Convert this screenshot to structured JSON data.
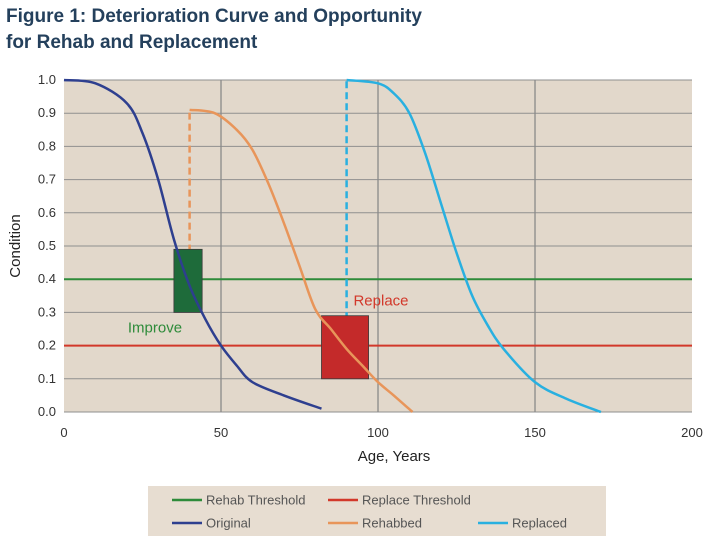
{
  "title_line1": "Figure 1: Deterioration Curve and Opportunity",
  "title_line2": "for Rehab and Replacement",
  "chart_data": {
    "type": "line",
    "title": "Figure 1: Deterioration Curve and Opportunity for Rehab and Replacement",
    "xlabel": "Age, Years",
    "ylabel": "Condition",
    "xlim": [
      0,
      200
    ],
    "ylim": [
      0,
      1.0
    ],
    "x_ticks": [
      "0",
      "50",
      "100",
      "150",
      "200"
    ],
    "y_ticks": [
      "0.0",
      "0.1",
      "0.2",
      "0.3",
      "0.4",
      "0.5",
      "0.6",
      "0.7",
      "0.8",
      "0.9",
      "1.0"
    ],
    "grid": true,
    "plot_background": "#e2d8cb",
    "thresholds": [
      {
        "name": "Rehab Threshold",
        "y": 0.4,
        "color": "#2e8b3a"
      },
      {
        "name": "Replace Threshold",
        "y": 0.2,
        "color": "#d2382a"
      }
    ],
    "series": [
      {
        "name": "Original",
        "color": "#2e3f8f",
        "x": [
          0,
          10,
          20,
          25,
          30,
          35,
          40,
          45,
          50,
          55,
          60,
          70,
          82
        ],
        "y": [
          1.0,
          0.99,
          0.93,
          0.84,
          0.7,
          0.52,
          0.38,
          0.28,
          0.2,
          0.14,
          0.09,
          0.05,
          0.01
        ]
      },
      {
        "name": "Rehabbed",
        "color": "#e8955a",
        "x": [
          40,
          48,
          55,
          60,
          65,
          70,
          75,
          80,
          85,
          90,
          95,
          100,
          105,
          111
        ],
        "y": [
          0.91,
          0.9,
          0.85,
          0.79,
          0.69,
          0.57,
          0.44,
          0.31,
          0.25,
          0.19,
          0.14,
          0.09,
          0.05,
          0.0
        ]
      },
      {
        "name": "Replaced",
        "color": "#29b0e0",
        "x": [
          90,
          100,
          105,
          110,
          115,
          120,
          125,
          130,
          135,
          140,
          150,
          160,
          171
        ],
        "y": [
          1.0,
          0.99,
          0.96,
          0.9,
          0.78,
          0.63,
          0.48,
          0.35,
          0.26,
          0.19,
          0.09,
          0.04,
          0.0
        ]
      }
    ],
    "drops": [
      {
        "series": "Rehabbed",
        "x": 40,
        "y_from": 0.45,
        "y_to": 0.91,
        "style": "dashed"
      },
      {
        "series": "Replaced",
        "x": 90,
        "y_from": 0.18,
        "y_to": 1.0,
        "style": "dashed"
      }
    ],
    "regions": [
      {
        "label": "Improve",
        "x0": 35,
        "x1": 44,
        "y0": 0.3,
        "y1": 0.49,
        "color": "#1e6b3a",
        "label_color": "#2e8b3a"
      },
      {
        "label": "Replace",
        "x0": 82,
        "x1": 97,
        "y0": 0.1,
        "y1": 0.29,
        "color": "#c42a2a",
        "label_color": "#d2382a"
      }
    ],
    "legend": {
      "position": "bottom",
      "entries": [
        "Rehab Threshold",
        "Replace Threshold",
        "Original",
        "Rehabbed",
        "Replaced"
      ]
    }
  }
}
